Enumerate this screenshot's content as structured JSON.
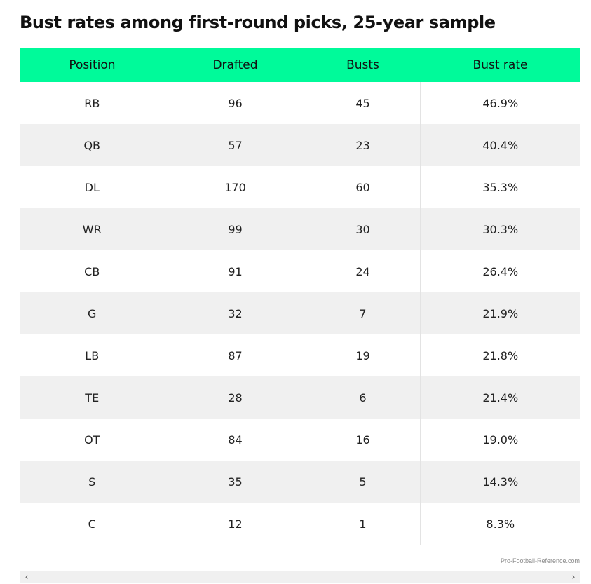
{
  "title": "Bust rates among first-round picks, 25-year sample",
  "source": "Pro-Football-Reference.com",
  "colors": {
    "header_bg": "#00FA9A",
    "row_alt_bg": "#F0F0F0",
    "row_bg": "#FFFFFF"
  },
  "scroll": {
    "left_icon": "chevron-left-icon",
    "right_icon": "chevron-right-icon"
  },
  "chart_data": {
    "type": "table",
    "title": "Bust rates among first-round picks, 25-year sample",
    "columns": [
      "Position",
      "Drafted",
      "Busts",
      "Bust rate"
    ],
    "rows": [
      [
        "RB",
        "96",
        "45",
        "46.9%"
      ],
      [
        "QB",
        "57",
        "23",
        "40.4%"
      ],
      [
        "DL",
        "170",
        "60",
        "35.3%"
      ],
      [
        "WR",
        "99",
        "30",
        "30.3%"
      ],
      [
        "CB",
        "91",
        "24",
        "26.4%"
      ],
      [
        "G",
        "32",
        "7",
        "21.9%"
      ],
      [
        "LB",
        "87",
        "19",
        "21.8%"
      ],
      [
        "TE",
        "28",
        "6",
        "21.4%"
      ],
      [
        "OT",
        "84",
        "16",
        "19.0%"
      ],
      [
        "S",
        "35",
        "5",
        "14.3%"
      ],
      [
        "C",
        "12",
        "1",
        "8.3%"
      ]
    ]
  }
}
